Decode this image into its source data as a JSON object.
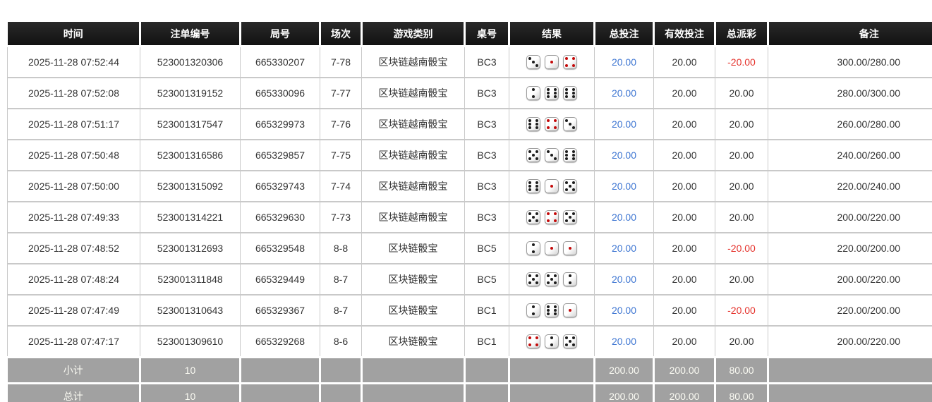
{
  "theme": {
    "header_bg": "#1c1c1c",
    "header_text": "#ffffff",
    "footer_bg": "#a1a1a1",
    "footer_text": "#fbfbf3",
    "bet_blue": "#3e76d2",
    "payout_red": "#e5312b",
    "text": "#333333",
    "grid_line": "#c9c9c9",
    "pip_black": "#1d1d1d",
    "pip_red": "#c40a0a"
  },
  "table": {
    "columns": [
      {
        "id": "time",
        "label": "时间"
      },
      {
        "id": "bet_id",
        "label": "注单编号"
      },
      {
        "id": "round_id",
        "label": "局号"
      },
      {
        "id": "session",
        "label": "场次"
      },
      {
        "id": "game_type",
        "label": "游戏类别"
      },
      {
        "id": "table_no",
        "label": "桌号"
      },
      {
        "id": "result",
        "label": "结果"
      },
      {
        "id": "total_bet",
        "label": "总投注"
      },
      {
        "id": "valid_bet",
        "label": "有效投注"
      },
      {
        "id": "payout",
        "label": "总派彩"
      },
      {
        "id": "remark",
        "label": "备注"
      }
    ],
    "rows": [
      {
        "time": "2025-11-28 07:52:44",
        "bet_id": "523001320306",
        "round_id": "665330207",
        "session": "7-78",
        "game_type": "区块链越南骰宝",
        "table_no": "BC3",
        "dice": [
          3,
          1,
          4
        ],
        "total_bet": "20.00",
        "valid_bet": "20.00",
        "payout": "-20.00",
        "remark": "300.00/280.00"
      },
      {
        "time": "2025-11-28 07:52:08",
        "bet_id": "523001319152",
        "round_id": "665330096",
        "session": "7-77",
        "game_type": "区块链越南骰宝",
        "table_no": "BC3",
        "dice": [
          2,
          6,
          6
        ],
        "total_bet": "20.00",
        "valid_bet": "20.00",
        "payout": "20.00",
        "remark": "280.00/300.00"
      },
      {
        "time": "2025-11-28 07:51:17",
        "bet_id": "523001317547",
        "round_id": "665329973",
        "session": "7-76",
        "game_type": "区块链越南骰宝",
        "table_no": "BC3",
        "dice": [
          6,
          4,
          3
        ],
        "total_bet": "20.00",
        "valid_bet": "20.00",
        "payout": "20.00",
        "remark": "260.00/280.00"
      },
      {
        "time": "2025-11-28 07:50:48",
        "bet_id": "523001316586",
        "round_id": "665329857",
        "session": "7-75",
        "game_type": "区块链越南骰宝",
        "table_no": "BC3",
        "dice": [
          5,
          3,
          6
        ],
        "total_bet": "20.00",
        "valid_bet": "20.00",
        "payout": "20.00",
        "remark": "240.00/260.00"
      },
      {
        "time": "2025-11-28 07:50:00",
        "bet_id": "523001315092",
        "round_id": "665329743",
        "session": "7-74",
        "game_type": "区块链越南骰宝",
        "table_no": "BC3",
        "dice": [
          6,
          1,
          5
        ],
        "total_bet": "20.00",
        "valid_bet": "20.00",
        "payout": "20.00",
        "remark": "220.00/240.00"
      },
      {
        "time": "2025-11-28 07:49:33",
        "bet_id": "523001314221",
        "round_id": "665329630",
        "session": "7-73",
        "game_type": "区块链越南骰宝",
        "table_no": "BC3",
        "dice": [
          5,
          4,
          5
        ],
        "total_bet": "20.00",
        "valid_bet": "20.00",
        "payout": "20.00",
        "remark": "200.00/220.00"
      },
      {
        "time": "2025-11-28 07:48:52",
        "bet_id": "523001312693",
        "round_id": "665329548",
        "session": "8-8",
        "game_type": "区块链骰宝",
        "table_no": "BC5",
        "dice": [
          2,
          1,
          1
        ],
        "total_bet": "20.00",
        "valid_bet": "20.00",
        "payout": "-20.00",
        "remark": "220.00/200.00"
      },
      {
        "time": "2025-11-28 07:48:24",
        "bet_id": "523001311848",
        "round_id": "665329449",
        "session": "8-7",
        "game_type": "区块链骰宝",
        "table_no": "BC5",
        "dice": [
          5,
          5,
          2
        ],
        "total_bet": "20.00",
        "valid_bet": "20.00",
        "payout": "20.00",
        "remark": "200.00/220.00"
      },
      {
        "time": "2025-11-28 07:47:49",
        "bet_id": "523001310643",
        "round_id": "665329367",
        "session": "8-7",
        "game_type": "区块链骰宝",
        "table_no": "BC1",
        "dice": [
          2,
          6,
          1
        ],
        "total_bet": "20.00",
        "valid_bet": "20.00",
        "payout": "-20.00",
        "remark": "220.00/200.00"
      },
      {
        "time": "2025-11-28 07:47:17",
        "bet_id": "523001309610",
        "round_id": "665329268",
        "session": "8-6",
        "game_type": "区块链骰宝",
        "table_no": "BC1",
        "dice": [
          4,
          2,
          5
        ],
        "total_bet": "20.00",
        "valid_bet": "20.00",
        "payout": "20.00",
        "remark": "200.00/220.00"
      }
    ],
    "summary_rows": [
      {
        "label": "小计",
        "count": "10",
        "total_bet": "200.00",
        "valid_bet": "200.00",
        "payout": "80.00"
      },
      {
        "label": "总计",
        "count": "10",
        "total_bet": "200.00",
        "valid_bet": "200.00",
        "payout": "80.00"
      }
    ]
  }
}
